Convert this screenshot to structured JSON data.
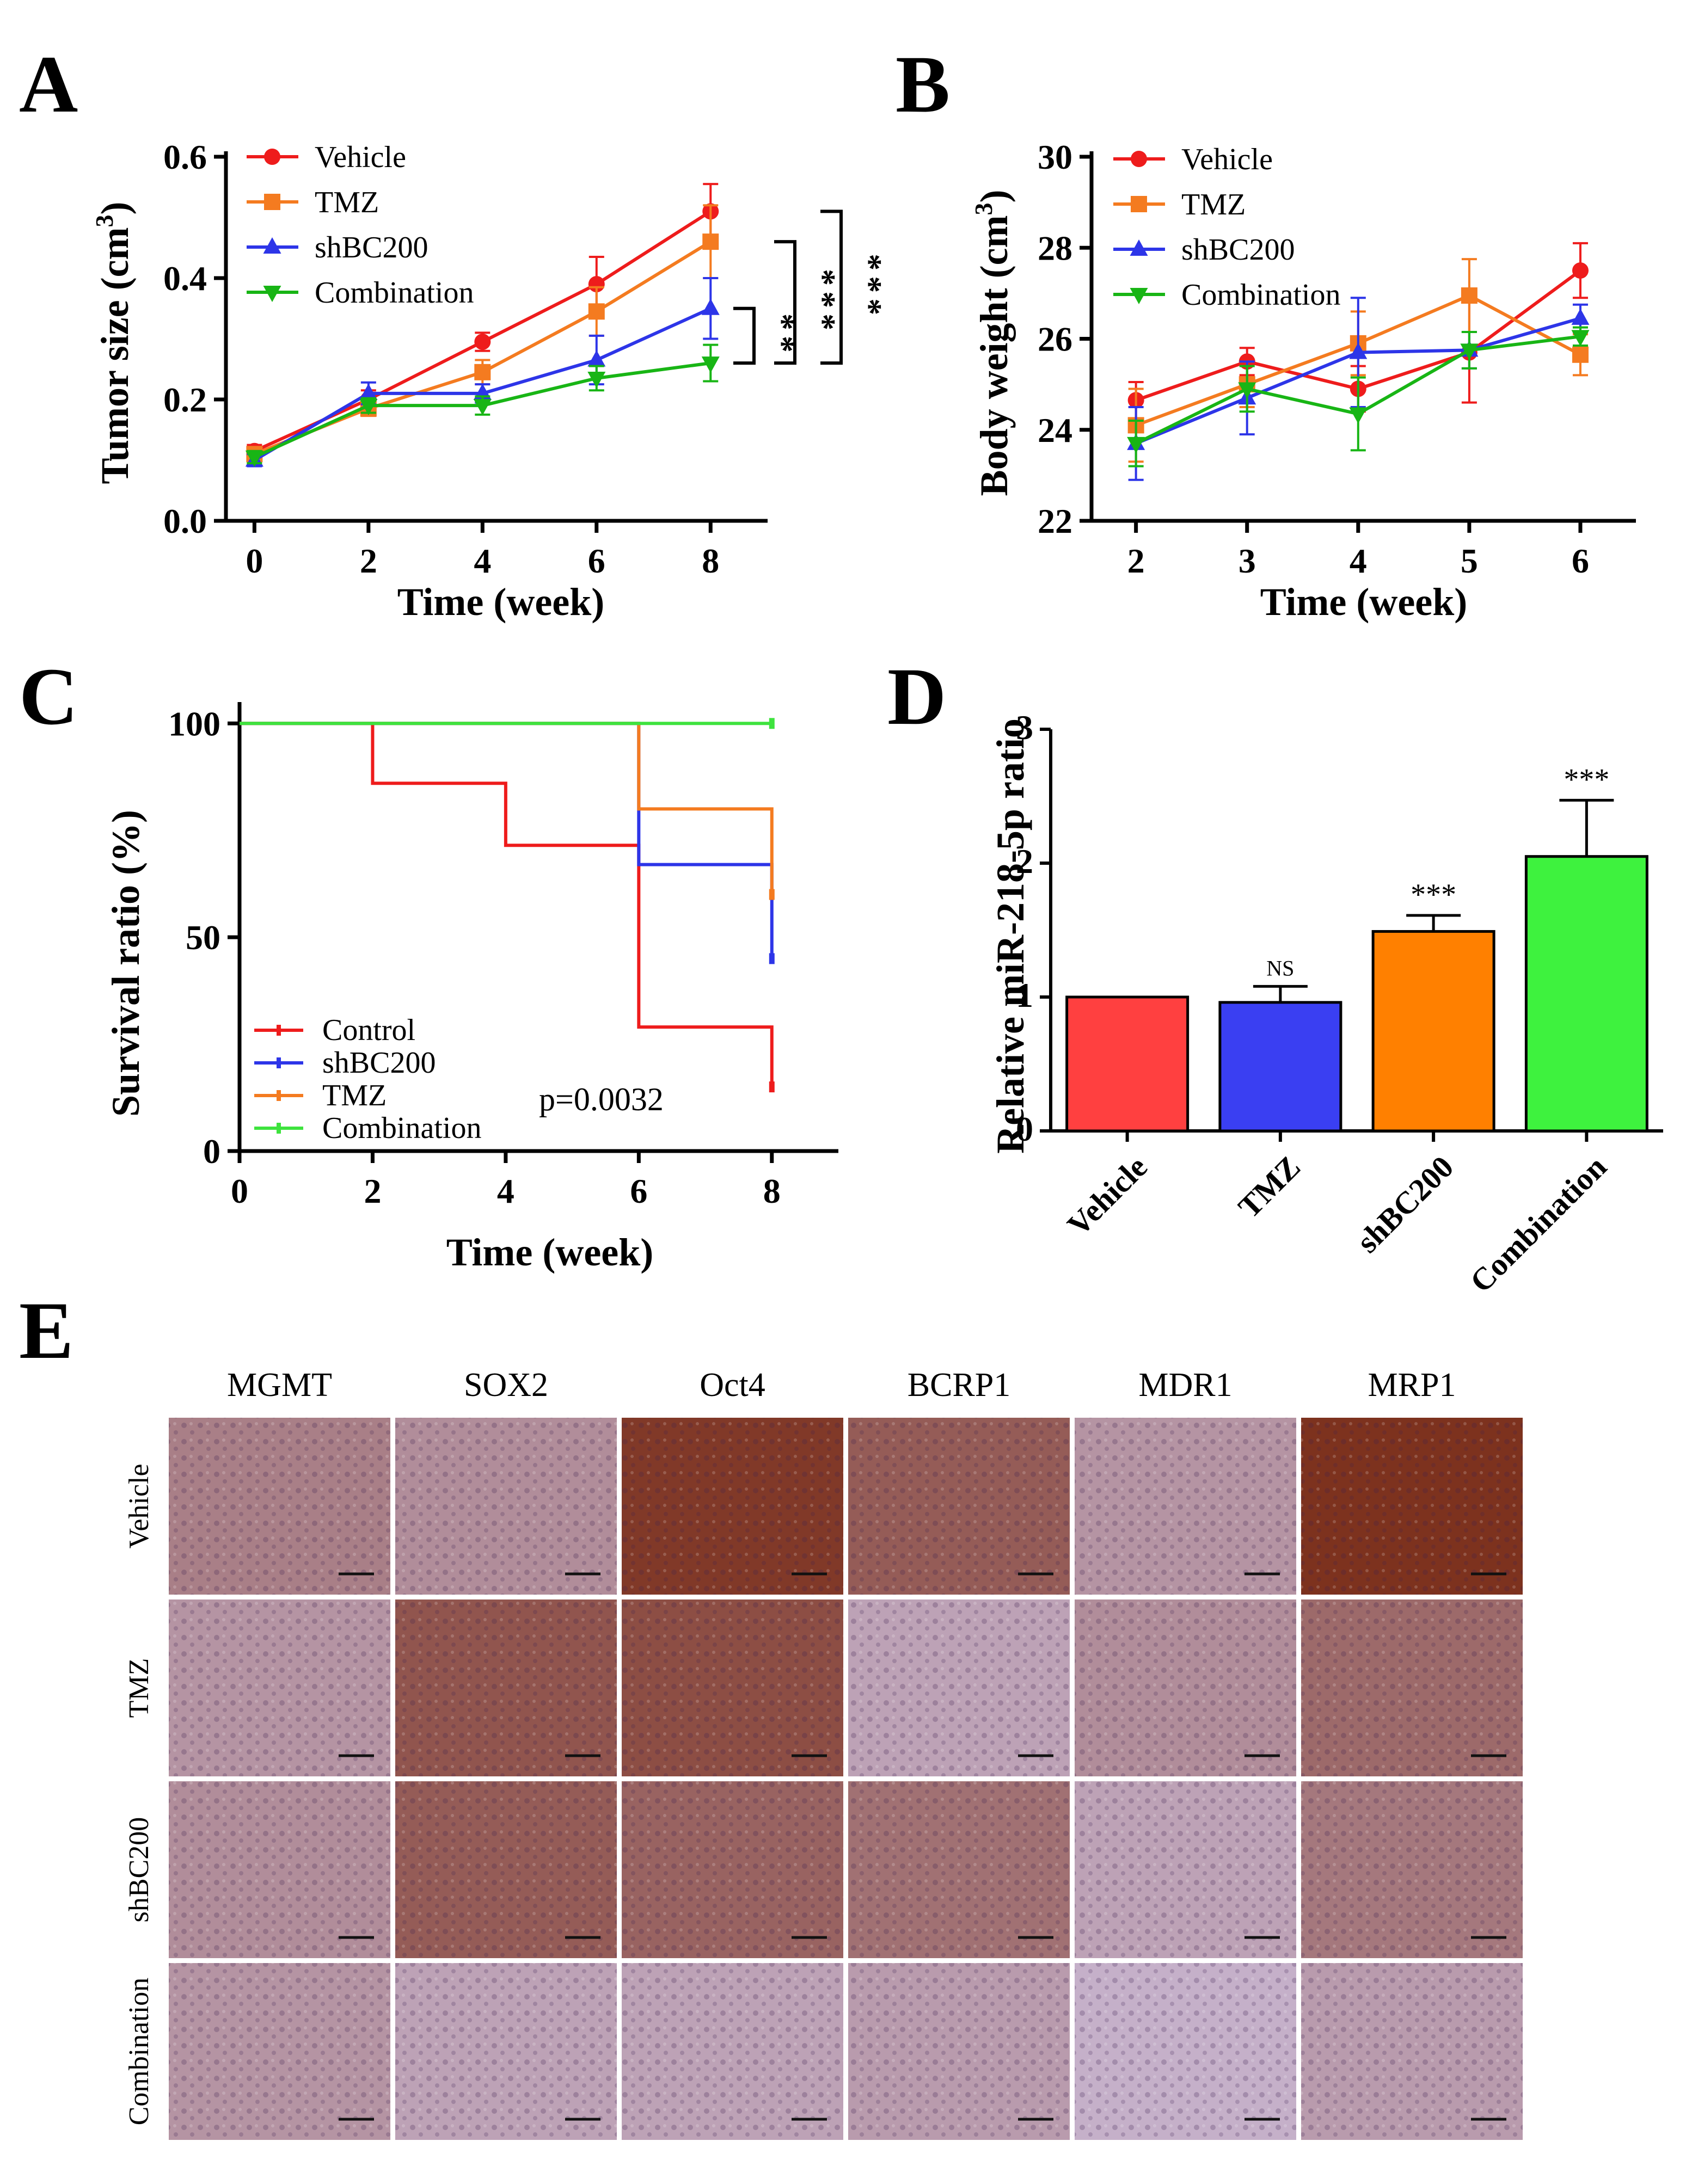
{
  "panels": {
    "A": {
      "letter": "A",
      "xlabel": "Time (week)",
      "ylabel": "Tumor size (cm",
      "ylabel_sup": "3",
      "ylabel_close": ")"
    },
    "B": {
      "letter": "B",
      "xlabel": "Time (week)",
      "ylabel": "Body weight (cm",
      "ylabel_sup": "3",
      "ylabel_close": ")"
    },
    "C": {
      "letter": "C",
      "xlabel": "Time (week)",
      "ylabel": "Survival ratio (%)",
      "pvalue": "p=0.0032"
    },
    "D": {
      "letter": "D",
      "ylabel": "Relative miR-218-5p ratio"
    },
    "E": {
      "letter": "E",
      "columns": [
        "MGMT",
        "SOX2",
        "Oct4",
        "BCRP1",
        "MDR1",
        "MRP1"
      ],
      "rows": [
        "Vehicle",
        "TMZ",
        "shBC200",
        "Combination"
      ],
      "stain_intensity": [
        [
          0.45,
          0.35,
          0.95,
          0.7,
          0.3,
          1.0
        ],
        [
          0.3,
          0.75,
          0.8,
          0.2,
          0.35,
          0.6
        ],
        [
          0.35,
          0.7,
          0.65,
          0.55,
          0.2,
          0.5
        ],
        [
          0.3,
          0.2,
          0.2,
          0.25,
          0.1,
          0.25
        ]
      ]
    }
  },
  "colors": {
    "red": "#ee1c1c",
    "orange": "#f47b20",
    "blue": "#2d35e8",
    "green": "#18b515",
    "ctrl_green": "#3ee33e"
  },
  "chart_data": [
    {
      "id": "A",
      "type": "line",
      "x": [
        0,
        2,
        4,
        6,
        8
      ],
      "xlim": [
        -0.5,
        9
      ],
      "ylim": [
        0,
        0.6
      ],
      "xticks": [
        "0",
        "2",
        "4",
        "6",
        "8"
      ],
      "yticks": [
        "0.0",
        "0.2",
        "0.4",
        "0.6"
      ],
      "series": [
        {
          "name": "Vehicle",
          "color": "#ee1c1c",
          "marker": "circle",
          "values": [
            0.115,
            0.2,
            0.295,
            0.39,
            0.51
          ],
          "err": [
            0.01,
            0.015,
            0.015,
            0.045,
            0.045
          ]
        },
        {
          "name": "TMZ",
          "color": "#f47b20",
          "marker": "square",
          "values": [
            0.11,
            0.185,
            0.245,
            0.345,
            0.46
          ],
          "err": [
            0.01,
            0.012,
            0.02,
            0.04,
            0.06
          ]
        },
        {
          "name": "shBC200",
          "color": "#2d35e8",
          "marker": "triangle",
          "values": [
            0.1,
            0.21,
            0.21,
            0.265,
            0.35
          ],
          "err": [
            0.01,
            0.018,
            0.015,
            0.04,
            0.05
          ]
        },
        {
          "name": "Combination",
          "color": "#18b515",
          "marker": "triangle-down",
          "values": [
            0.105,
            0.19,
            0.19,
            0.235,
            0.26
          ],
          "err": [
            0.01,
            0.012,
            0.015,
            0.02,
            0.03
          ]
        }
      ],
      "significance": [
        "**",
        "***",
        "***"
      ]
    },
    {
      "id": "B",
      "type": "line",
      "x": [
        2,
        3,
        4,
        5,
        6
      ],
      "xlim": [
        1.6,
        6.5
      ],
      "ylim": [
        22,
        30
      ],
      "xticks": [
        "2",
        "3",
        "4",
        "5",
        "6"
      ],
      "yticks": [
        "22",
        "24",
        "26",
        "28",
        "30"
      ],
      "series": [
        {
          "name": "Vehicle",
          "color": "#ee1c1c",
          "marker": "circle",
          "values": [
            24.65,
            25.5,
            24.9,
            25.7,
            27.5
          ],
          "err": [
            0.4,
            0.3,
            0.5,
            1.1,
            0.6
          ]
        },
        {
          "name": "TMZ",
          "color": "#f47b20",
          "marker": "square",
          "values": [
            24.1,
            25.0,
            25.9,
            26.95,
            25.65
          ],
          "err": [
            0.8,
            0.5,
            0.7,
            0.8,
            0.45
          ]
        },
        {
          "name": "shBC200",
          "color": "#2d35e8",
          "marker": "triangle",
          "values": [
            23.7,
            24.7,
            25.7,
            25.75,
            26.45
          ],
          "err": [
            0.8,
            0.8,
            1.2,
            0.4,
            0.3
          ]
        },
        {
          "name": "Combination",
          "color": "#18b515",
          "marker": "triangle-down",
          "values": [
            23.7,
            24.9,
            24.35,
            25.75,
            26.05
          ],
          "err": [
            0.5,
            0.5,
            0.8,
            0.4,
            0.2
          ]
        }
      ]
    },
    {
      "id": "C",
      "type": "line",
      "subtype": "kaplan-meier",
      "xlim": [
        0,
        9
      ],
      "ylim": [
        0,
        105
      ],
      "xticks": [
        "0",
        "2",
        "4",
        "6",
        "8"
      ],
      "yticks": [
        "0",
        "50",
        "100"
      ],
      "series": [
        {
          "name": "Control",
          "color": "#ee1c1c",
          "steps": [
            [
              0,
              100
            ],
            [
              2,
              86
            ],
            [
              4,
              71.5
            ],
            [
              6,
              29
            ],
            [
              8,
              15
            ]
          ]
        },
        {
          "name": "shBC200",
          "color": "#2d35e8",
          "steps": [
            [
              0,
              100
            ],
            [
              6,
              67
            ],
            [
              8,
              45
            ]
          ]
        },
        {
          "name": "TMZ",
          "color": "#f47b20",
          "steps": [
            [
              0,
              100
            ],
            [
              6,
              80
            ],
            [
              8,
              60
            ]
          ]
        },
        {
          "name": "Combination",
          "color": "#3ee33e",
          "steps": [
            [
              0,
              100
            ],
            [
              8,
              100
            ]
          ]
        }
      ]
    },
    {
      "id": "D",
      "type": "bar",
      "categories": [
        "Vehicle",
        "TMZ",
        "shBC200",
        "Combination"
      ],
      "values": [
        1.0,
        0.96,
        1.49,
        2.05
      ],
      "err": [
        0,
        0.12,
        0.12,
        0.42
      ],
      "labels": [
        "",
        "NS",
        "***",
        "***"
      ],
      "colors": [
        "#ff4040",
        "#3a3ff2",
        "#ff8000",
        "#3ef23e"
      ],
      "ylim": [
        0,
        3
      ],
      "yticks": [
        "0",
        "1",
        "2",
        "3"
      ]
    }
  ]
}
